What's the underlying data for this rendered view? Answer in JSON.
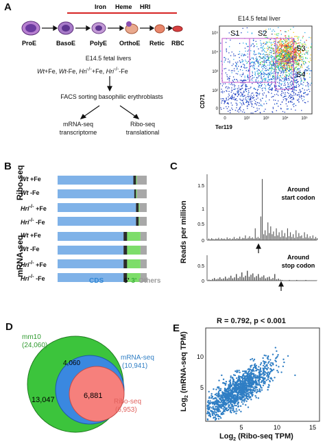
{
  "panels": {
    "A": {
      "letter": "A",
      "regulators": [
        "Iron",
        "Heme",
        "HRI"
      ],
      "cell_stages": [
        "ProE",
        "BasoE",
        "PolyE",
        "OrthoE",
        "Retic",
        "RBC"
      ],
      "sample_source": "E14.5 fetal livers",
      "conditions": {
        "c1": "Wt",
        "c1_fe": "+Fe, ",
        "c2": "Wt",
        "c2_fe": "-Fe, ",
        "c3": "Hri",
        "c3_sup": "-/-",
        "c3_fe": "+Fe, ",
        "c4": "Hri",
        "c4_sup": "-/-",
        "c4_fe": "-Fe"
      },
      "facs_step": "FACS sorting basophilic erythroblasts",
      "mrna_label_1": "mRNA-seq",
      "mrna_label_2": "transcriptome",
      "ribo_label_1": "Ribo-seq",
      "ribo_label_2": "translational",
      "flow_title": "E14.5 fetal liver",
      "flow_gates": [
        "S1",
        "S2",
        "S3",
        "S4"
      ],
      "flow_x_label": "Ter119",
      "flow_y_label": "CD71",
      "flow_y_ticks": [
        "10⁵",
        "10⁴",
        "10³",
        "10²",
        "0"
      ],
      "flow_x_ticks": [
        "0",
        "10²",
        "10³",
        "10⁴",
        "10⁵"
      ]
    },
    "B": {
      "letter": "B",
      "group_labels": [
        "Ribo-seq",
        "mRNA-seq"
      ],
      "legend": {
        "cds": "CDS",
        "utr5": "5'",
        "utr3": "3'",
        "others": "Others"
      },
      "colors": {
        "cds": "#7fb2e8",
        "utr5": "#2b2b2b",
        "utr3": "#7ddd6a",
        "others": "#a8a8a8"
      }
    },
    "C": {
      "letter": "C",
      "y_label": "Reads per million",
      "top_title_1": "Around",
      "top_title_2": "start codon",
      "bottom_title_1": "Around",
      "bottom_title_2": "stop codon",
      "y_ticks": [
        "1.5",
        "1",
        "0.5",
        "0"
      ],
      "y_ticks_bottom": [
        "0.5",
        "0"
      ]
    },
    "D": {
      "letter": "D",
      "mm10_label": "mm10",
      "mm10_total": "(24,060)",
      "mrna_label": "mRNA-seq",
      "mrna_total": "(10,941)",
      "ribo_label": "Ribo-seq",
      "ribo_total": "(6,953)",
      "mm10_only": "13,047",
      "mrna_only": "4,060",
      "overlap": "6,881",
      "colors": {
        "mm10": "#3cc43c",
        "mrna": "#3a88e0",
        "ribo": "#f6807c"
      }
    },
    "E": {
      "letter": "E",
      "stats": "R = 0.792, p < 0.001",
      "x_label": "Log",
      "x_label_sub": "2",
      "x_label_rest": " (Ribo-seq TPM)",
      "y_label": "Log",
      "y_label_sub": "2",
      "y_label_rest": " (mRNA-seq TPM)",
      "x_ticks": [
        "5",
        "10",
        "15"
      ],
      "y_ticks": [
        "10",
        "5"
      ],
      "point_color": "#2f7ec4"
    }
  },
  "chart_data": [
    {
      "type": "bar",
      "panel": "B",
      "orientation": "horizontal-stacked",
      "categories": [
        "Wt +Fe",
        "Wt -Fe",
        "Hri-/- +Fe",
        "Hri-/- -Fe",
        "Wt +Fe",
        "Wt -Fe",
        "Hri-/- +Fe",
        "Hri-/- -Fe"
      ],
      "groups": [
        "Ribo-seq",
        "Ribo-seq",
        "Ribo-seq",
        "Ribo-seq",
        "mRNA-seq",
        "mRNA-seq",
        "mRNA-seq",
        "mRNA-seq"
      ],
      "series": [
        {
          "name": "CDS",
          "values": [
            0.85,
            0.86,
            0.88,
            0.88,
            0.74,
            0.74,
            0.74,
            0.74
          ]
        },
        {
          "name": "5'",
          "values": [
            0.03,
            0.02,
            0.03,
            0.03,
            0.04,
            0.04,
            0.04,
            0.04
          ]
        },
        {
          "name": "3'",
          "values": [
            0.01,
            0.01,
            0.01,
            0.01,
            0.15,
            0.15,
            0.15,
            0.15
          ]
        },
        {
          "name": "Others",
          "values": [
            0.11,
            0.11,
            0.08,
            0.08,
            0.07,
            0.07,
            0.07,
            0.07
          ]
        }
      ]
    },
    {
      "type": "bar",
      "panel": "C",
      "subplot": "Around start codon",
      "ylim": [
        0,
        1.6
      ],
      "values": [
        0.04,
        0.02,
        0.05,
        0.03,
        0.02,
        0.04,
        0.03,
        0.06,
        0.02,
        0.05,
        0.03,
        0.04,
        0.02,
        0.07,
        0.03,
        0.05,
        0.02,
        0.04,
        0.08,
        0.03,
        0.05,
        0.04,
        0.09,
        0.03,
        0.06,
        0.05,
        0.12,
        0.04,
        0.06,
        0.1,
        0.05,
        0.07,
        0.04,
        0.3,
        0.06,
        0.08,
        0.05,
        0.6,
        1.55,
        0.15,
        0.25,
        0.12,
        0.45,
        0.18,
        0.35,
        0.15,
        0.22,
        0.1,
        0.3,
        0.12,
        0.2,
        0.08,
        0.25,
        0.1,
        0.18,
        0.07,
        0.3,
        0.1,
        0.2,
        0.08,
        0.15,
        0.06,
        0.25,
        0.08,
        0.18,
        0.1,
        0.12,
        0.05,
        0.2,
        0.07,
        0.15,
        0.06,
        0.1,
        0.05,
        0.12,
        0.04,
        0.08,
        0.05
      ]
    },
    {
      "type": "bar",
      "panel": "C",
      "subplot": "Around stop codon",
      "ylim": [
        0,
        0.5
      ],
      "values": [
        0.03,
        0.02,
        0.05,
        0.08,
        0.04,
        0.06,
        0.1,
        0.05,
        0.07,
        0.12,
        0.06,
        0.09,
        0.15,
        0.07,
        0.1,
        0.2,
        0.08,
        0.12,
        0.25,
        0.1,
        0.15,
        0.3,
        0.12,
        0.18,
        0.22,
        0.1,
        0.14,
        0.2,
        0.09,
        0.12,
        0.16,
        0.07,
        0.1,
        0.12,
        0.05,
        0.08,
        0.2,
        0.04,
        0.06,
        0.03,
        0.02,
        0.01,
        0.01,
        0.01,
        0.02,
        0.01,
        0.01,
        0.01,
        0.02,
        0.01,
        0.01,
        0.01,
        0.01,
        0.02,
        0.01,
        0.01,
        0.01,
        0.01,
        0.01,
        0.01
      ]
    },
    {
      "type": "scatter",
      "panel": "E",
      "xlim": [
        0,
        16
      ],
      "ylim": [
        0,
        15
      ],
      "correlation": 0.792,
      "n_points_drawn": 1400
    }
  ]
}
